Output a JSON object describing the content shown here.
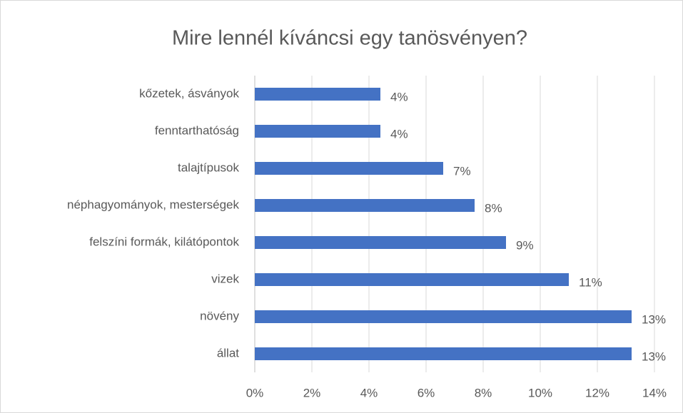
{
  "chart_data": {
    "type": "bar",
    "orientation": "horizontal",
    "title": "Mire lennél kíváncsi egy tanösvényen?",
    "categories": [
      "kőzetek, ásványok",
      "fenntarthatóság",
      "talajtípusok",
      "néphagyományok, mesterségek",
      "felszíni formák, kilátópontok",
      "vizek",
      "növény",
      "állat"
    ],
    "values": [
      4.4,
      4.4,
      6.6,
      7.7,
      8.8,
      11.0,
      13.2,
      13.2
    ],
    "value_labels": [
      "4%",
      "4%",
      "7%",
      "8%",
      "9%",
      "11%",
      "13%",
      "13%"
    ],
    "color": "#4472c4",
    "xlim": [
      0,
      14
    ],
    "xticks": [
      {
        "value": 0,
        "label": "0%"
      },
      {
        "value": 2,
        "label": "2%"
      },
      {
        "value": 4,
        "label": "4%"
      },
      {
        "value": 6,
        "label": "6%"
      },
      {
        "value": 8,
        "label": "8%"
      },
      {
        "value": 10,
        "label": "10%"
      },
      {
        "value": 12,
        "label": "12%"
      },
      {
        "value": 14,
        "label": "14%"
      }
    ],
    "grid": true
  }
}
